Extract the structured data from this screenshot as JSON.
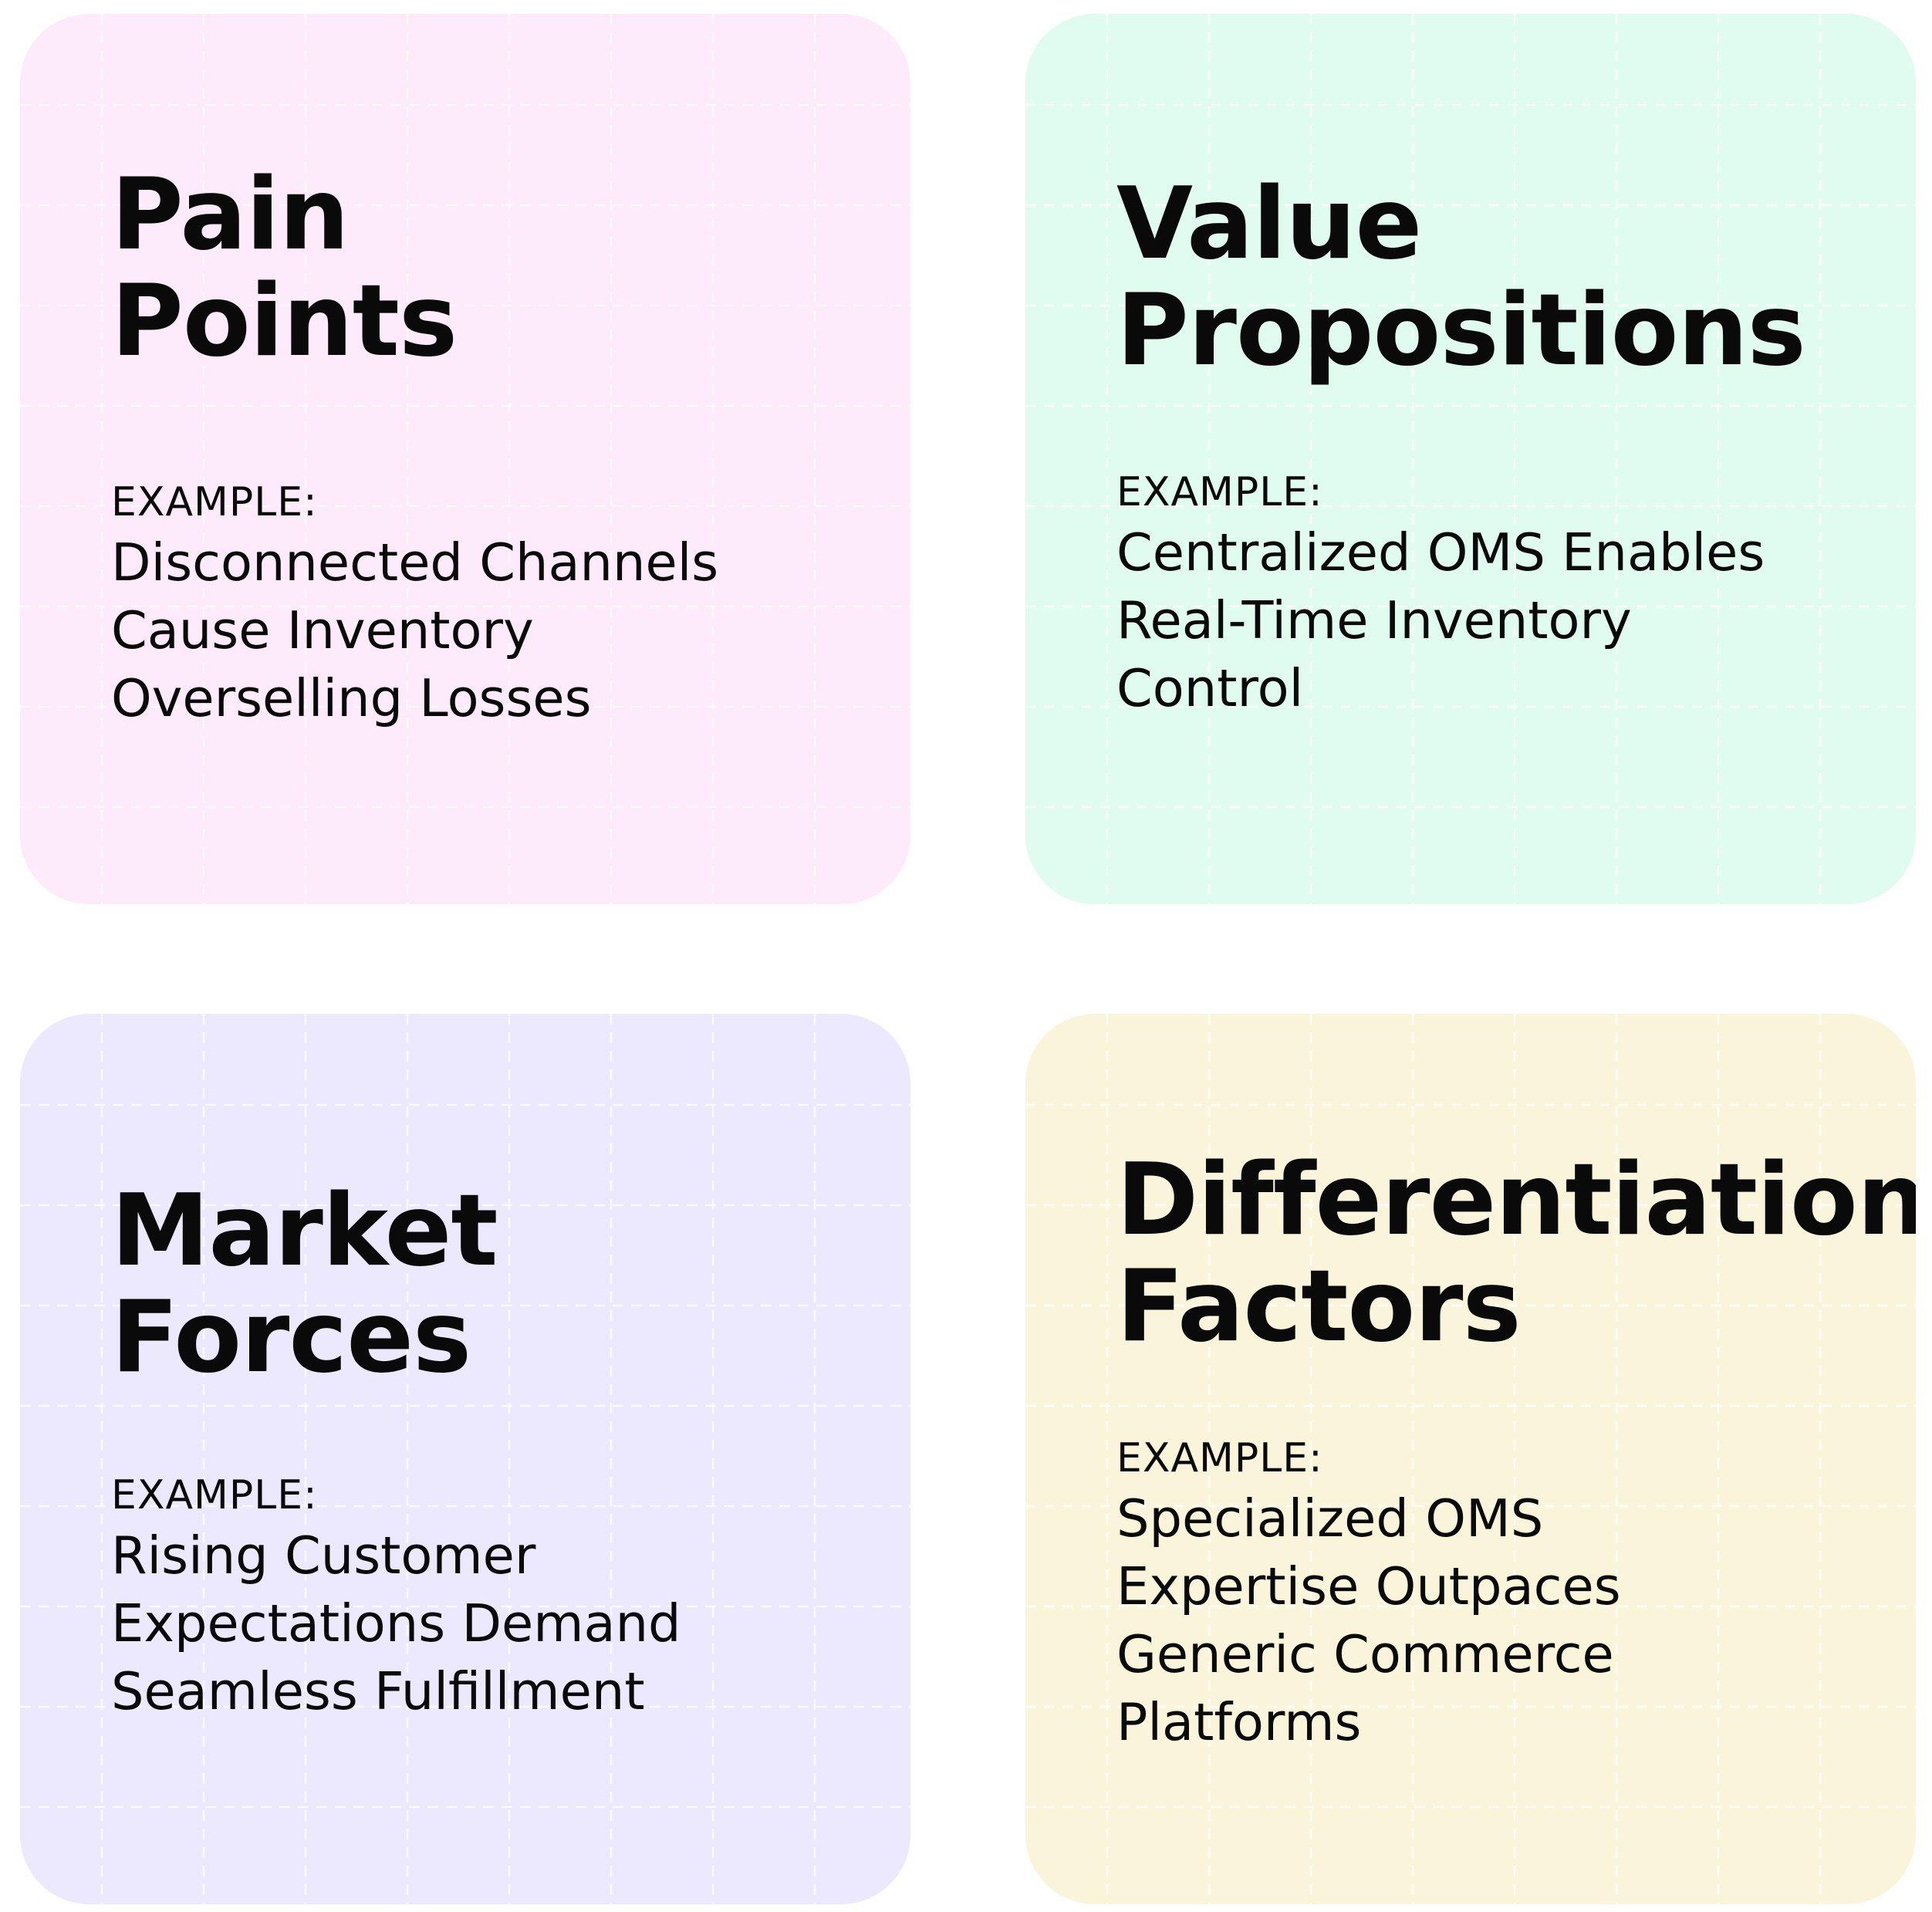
{
  "cards": {
    "pain": {
      "title_lines": [
        "Pain",
        "Points"
      ],
      "example_label": "EXAMPLE:",
      "example_lines": [
        "Disconnected Channels",
        "Cause Inventory",
        "Overselling Losses"
      ],
      "color": "#fdebfb"
    },
    "value": {
      "title_lines": [
        "Value",
        "Propositions"
      ],
      "example_label": "EXAMPLE:",
      "example_lines": [
        "Centralized OMS Enables",
        "Real-Time Inventory",
        "Control"
      ],
      "color": "#e0fbf0"
    },
    "market": {
      "title_lines": [
        "Market",
        "Forces"
      ],
      "example_label": "EXAMPLE:",
      "example_lines": [
        "Rising Customer",
        "Expectations Demand",
        "Seamless Fulfillment"
      ],
      "color": "#ece8fd"
    },
    "diff": {
      "title_lines": [
        "Differentiation",
        "Factors"
      ],
      "example_label": "EXAMPLE:",
      "example_lines": [
        "Specialized OMS",
        "Expertise Outpaces",
        "Generic Commerce",
        "Platforms"
      ],
      "color": "#faf5da"
    }
  }
}
